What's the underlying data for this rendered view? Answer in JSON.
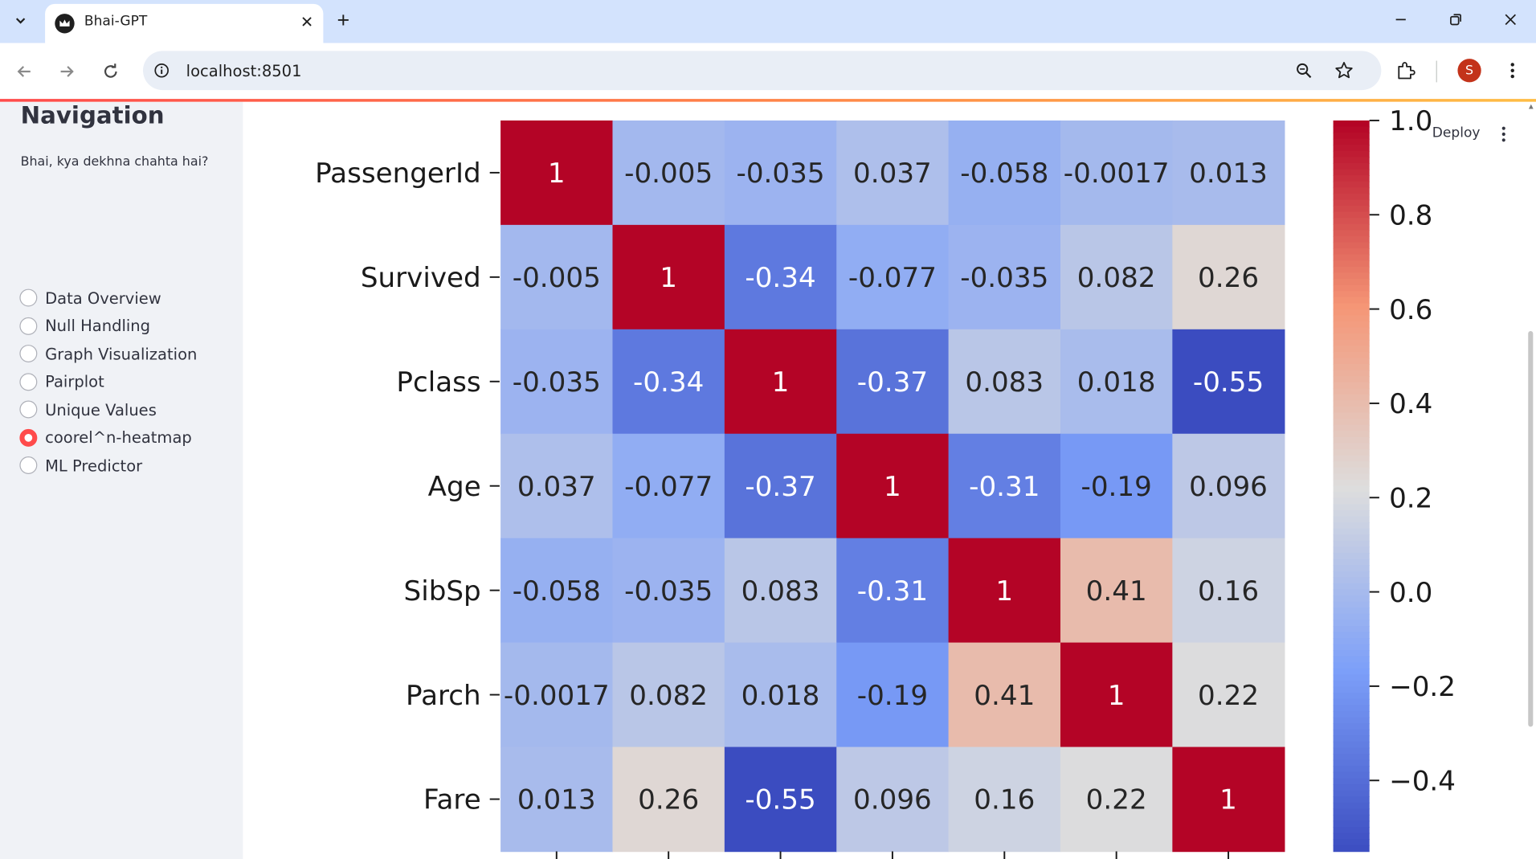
{
  "browser": {
    "tab_title": "Bhai-GPT",
    "url": "localhost:8501",
    "profile_initial": "S"
  },
  "sidebar": {
    "title": "Navigation",
    "question": "Bhai, kya dekhna chahta hai?",
    "options": [
      {
        "label": "Data Overview",
        "selected": false
      },
      {
        "label": "Null Handling",
        "selected": false
      },
      {
        "label": "Graph Visualization",
        "selected": false
      },
      {
        "label": "Pairplot",
        "selected": false
      },
      {
        "label": "Unique Values",
        "selected": false
      },
      {
        "label": "coorel^n-heatmap",
        "selected": true
      },
      {
        "label": "ML Predictor",
        "selected": false
      }
    ]
  },
  "header": {
    "deploy_label": "Deploy"
  },
  "colors": {
    "accent": "#ff4b4b",
    "sidebar_bg": "#f0f2f6"
  },
  "chart_data": {
    "type": "heatmap",
    "colormap": "coolwarm",
    "vmin": -0.55,
    "vmax": 1.0,
    "row_labels": [
      "PassengerId",
      "Survived",
      "Pclass",
      "Age",
      "SibSp",
      "Parch",
      "Fare"
    ],
    "matrix": [
      [
        1,
        -0.005,
        -0.035,
        0.037,
        -0.058,
        -0.0017,
        0.013
      ],
      [
        -0.005,
        1,
        -0.34,
        -0.077,
        -0.035,
        0.082,
        0.26
      ],
      [
        -0.035,
        -0.34,
        1,
        -0.37,
        0.083,
        0.018,
        -0.55
      ],
      [
        0.037,
        -0.077,
        -0.37,
        1,
        -0.31,
        -0.19,
        0.096
      ],
      [
        -0.058,
        -0.035,
        0.083,
        -0.31,
        1,
        0.41,
        0.16
      ],
      [
        -0.0017,
        0.082,
        0.018,
        -0.19,
        0.41,
        1,
        0.22
      ],
      [
        0.013,
        0.26,
        -0.55,
        0.096,
        0.16,
        0.22,
        1
      ]
    ],
    "cell_labels": [
      [
        "1",
        "-0.005",
        "-0.035",
        "0.037",
        "-0.058",
        "-0.0017",
        "0.013"
      ],
      [
        "-0.005",
        "1",
        "-0.34",
        "-0.077",
        "-0.035",
        "0.082",
        "0.26"
      ],
      [
        "-0.035",
        "-0.34",
        "1",
        "-0.37",
        "0.083",
        "0.018",
        "-0.55"
      ],
      [
        "0.037",
        "-0.077",
        "-0.37",
        "1",
        "-0.31",
        "-0.19",
        "0.096"
      ],
      [
        "-0.058",
        "-0.035",
        "0.083",
        "-0.31",
        "1",
        "0.41",
        "0.16"
      ],
      [
        "-0.0017",
        "0.082",
        "0.018",
        "-0.19",
        "0.41",
        "1",
        "0.22"
      ],
      [
        "0.013",
        "0.26",
        "-0.55",
        "0.096",
        "0.16",
        "0.22",
        "1"
      ]
    ],
    "colorbar_ticks": [
      {
        "value": 1.0,
        "label": "1.0"
      },
      {
        "value": 0.8,
        "label": "0.8"
      },
      {
        "value": 0.6,
        "label": "0.6"
      },
      {
        "value": 0.4,
        "label": "0.4"
      },
      {
        "value": 0.2,
        "label": "0.2"
      },
      {
        "value": 0.0,
        "label": "0.0"
      },
      {
        "value": -0.2,
        "label": "−0.2"
      },
      {
        "value": -0.4,
        "label": "−0.4"
      }
    ]
  }
}
